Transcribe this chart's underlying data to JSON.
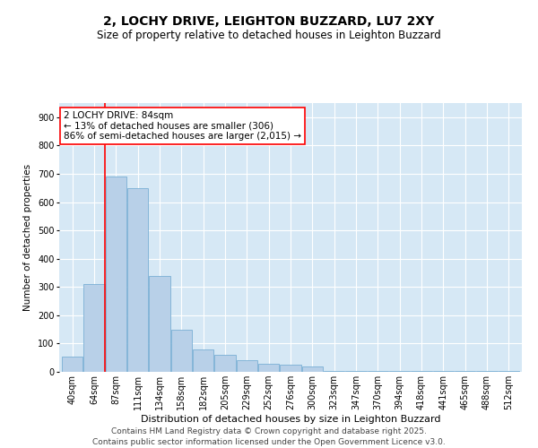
{
  "title": "2, LOCHY DRIVE, LEIGHTON BUZZARD, LU7 2XY",
  "subtitle": "Size of property relative to detached houses in Leighton Buzzard",
  "xlabel": "Distribution of detached houses by size in Leighton Buzzard",
  "ylabel": "Number of detached properties",
  "bar_color": "#b8d0e8",
  "bar_edge_color": "#7aafd4",
  "background_color": "#d6e8f5",
  "grid_color": "#ffffff",
  "categories": [
    "40sqm",
    "64sqm",
    "87sqm",
    "111sqm",
    "134sqm",
    "158sqm",
    "182sqm",
    "205sqm",
    "229sqm",
    "252sqm",
    "276sqm",
    "300sqm",
    "323sqm",
    "347sqm",
    "370sqm",
    "394sqm",
    "418sqm",
    "441sqm",
    "465sqm",
    "488sqm",
    "512sqm"
  ],
  "values": [
    55,
    310,
    690,
    650,
    340,
    150,
    80,
    60,
    40,
    30,
    25,
    20,
    3,
    3,
    3,
    3,
    3,
    3,
    3,
    3,
    3
  ],
  "ylim": [
    0,
    950
  ],
  "yticks": [
    0,
    100,
    200,
    300,
    400,
    500,
    600,
    700,
    800,
    900
  ],
  "red_line_x": 1.5,
  "annotation_text": "2 LOCHY DRIVE: 84sqm\n← 13% of detached houses are smaller (306)\n86% of semi-detached houses are larger (2,015) →",
  "annotation_box_color": "white",
  "annotation_box_edge_color": "red",
  "footer_line1": "Contains HM Land Registry data © Crown copyright and database right 2025.",
  "footer_line2": "Contains public sector information licensed under the Open Government Licence v3.0.",
  "title_fontsize": 10,
  "subtitle_fontsize": 8.5,
  "annotation_fontsize": 7.5,
  "ylabel_fontsize": 7.5,
  "xlabel_fontsize": 8,
  "footer_fontsize": 6.5,
  "tick_fontsize": 7
}
